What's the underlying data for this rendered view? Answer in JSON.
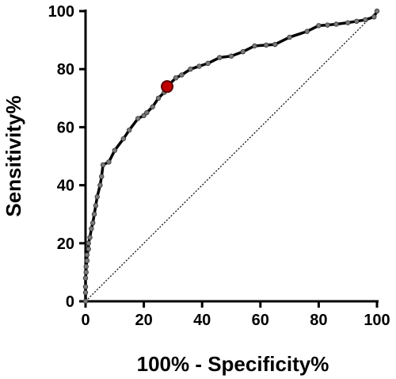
{
  "chart_data": {
    "type": "line",
    "title": "",
    "xlabel": "100% - Specificity%",
    "ylabel": "Sensitivity%",
    "xlim": [
      0,
      100
    ],
    "ylim": [
      0,
      100
    ],
    "x_ticks": [
      "0",
      "20",
      "40",
      "60",
      "80",
      "100"
    ],
    "y_ticks": [
      "0",
      "20",
      "40",
      "60",
      "80",
      "100"
    ],
    "grid": false,
    "reference_line": {
      "x": [
        0,
        100
      ],
      "y": [
        0,
        100
      ],
      "style": "dotted"
    },
    "series": [
      {
        "x": [
          0,
          0,
          0,
          0,
          0.2,
          0.2,
          0.5,
          0.5,
          1,
          1,
          1.5,
          2,
          2.5,
          3,
          3.5,
          4,
          5,
          5.5,
          6,
          8,
          10,
          13,
          15,
          18,
          20,
          21,
          23,
          25,
          27,
          28,
          29,
          31,
          33,
          36,
          39,
          42,
          46,
          50,
          54,
          58,
          62,
          65,
          70,
          76,
          80,
          83,
          86,
          90,
          93,
          96,
          99,
          100
        ],
        "y": [
          0,
          3,
          5,
          8,
          10,
          12,
          14,
          16,
          18,
          20,
          22,
          25,
          27,
          30,
          33,
          36,
          40,
          43,
          47,
          48,
          52,
          56,
          59,
          63,
          64,
          65,
          67,
          70,
          72,
          74,
          75,
          77,
          78,
          80,
          81,
          82,
          84,
          84.5,
          86,
          88,
          88.3,
          88.5,
          91,
          93,
          95,
          95.2,
          95.5,
          96,
          96.5,
          97,
          98,
          100
        ]
      }
    ],
    "highlight_point": {
      "x": 28,
      "y": 74
    }
  },
  "colors": {
    "line": "#000000",
    "marker": "#7a7a7a",
    "highlight_fill": "#c00000",
    "highlight_stroke": "#5a0000",
    "reference": "#000000"
  }
}
